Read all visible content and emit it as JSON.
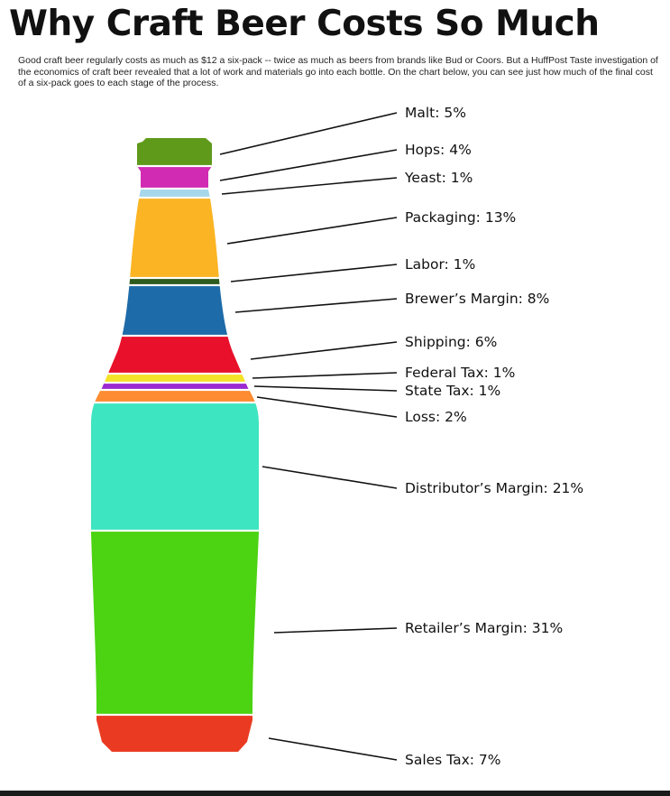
{
  "title": "Why Craft Beer Costs So Much",
  "intro": "Good craft beer regularly costs as much as $12 a six-pack -- twice as much as beers from brands like Bud or Coors. But a HuffPost Taste investigation of the economics of craft beer revealed that a lot of work and materials go into each bottle. On the chart below, you can see just how much of the final cost of a six-pack goes to each stage of the process.",
  "chart_data": {
    "type": "bar",
    "stacked": true,
    "unit": "%",
    "categories": [
      "Malt",
      "Hops",
      "Yeast",
      "Packaging",
      "Labor",
      "Brewer's Margin",
      "Shipping",
      "Federal Tax",
      "State Tax",
      "Loss",
      "Distributor's Margin",
      "Retailer's Margin",
      "Sales Tax"
    ],
    "values": [
      5,
      4,
      1,
      13,
      1,
      8,
      6,
      1,
      1,
      2,
      21,
      31,
      7
    ],
    "labels": [
      "Malt: 5%",
      "Hops: 4%",
      "Yeast: 1%",
      "Packaging: 13%",
      "Labor: 1%",
      "Brewer’s Margin: 8%",
      "Shipping: 6%",
      "Federal Tax: 1%",
      "State Tax: 1%",
      "Loss: 2%",
      "Distributor’s Margin: 21%",
      "Retailer’s Margin: 31%",
      "Sales Tax: 7%"
    ],
    "colors": [
      "#5f9a1b",
      "#d12bb3",
      "#a6d7ea",
      "#fbb423",
      "#2e5c1e",
      "#1d6ba8",
      "#e8102a",
      "#f3e227",
      "#9b2bd0",
      "#fd8c32",
      "#3de5c0",
      "#4cd312",
      "#ea3b22"
    ]
  }
}
